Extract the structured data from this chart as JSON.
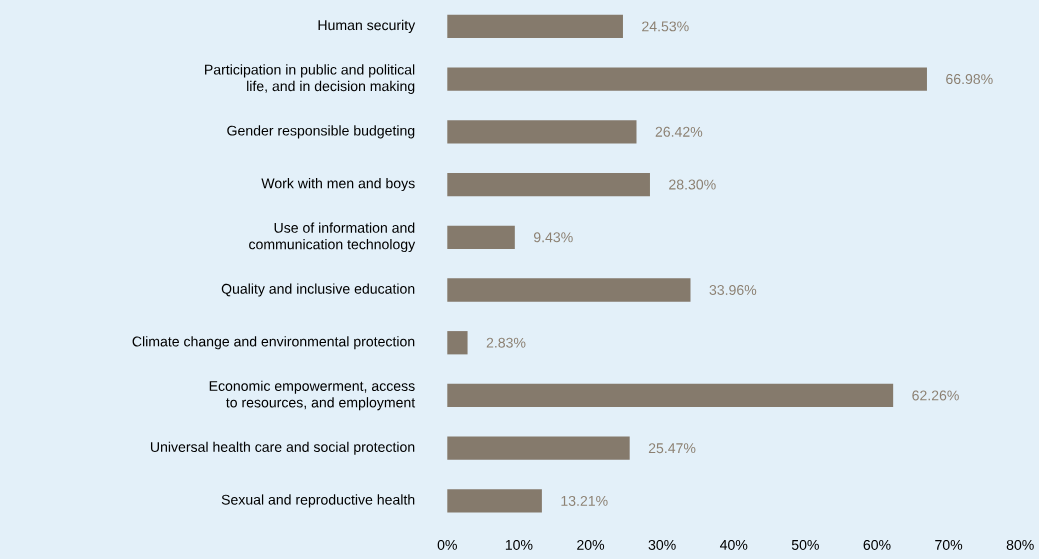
{
  "chart_data": {
    "type": "bar",
    "orientation": "horizontal",
    "categories": [
      "Human security",
      "Participation in public and political life, and in decision making",
      "Gender responsible budgeting",
      "Work with men and boys",
      "Use of information and communication technology",
      "Quality and inclusive education",
      "Climate change and environmental protection",
      "Economic empowerment, access to resources, and employment",
      "Universal health care and social protection",
      "Sexual and reproductive health"
    ],
    "values": [
      24.53,
      66.98,
      26.42,
      28.3,
      9.43,
      33.96,
      2.83,
      62.26,
      25.47,
      13.21
    ],
    "value_labels": [
      "24.53%",
      "66.98%",
      "26.42%",
      "28.30%",
      "9.43%",
      "33.96%",
      "2.83%",
      "62.26%",
      "25.47%",
      "13.21%"
    ],
    "color": "#857a6c",
    "xlim": [
      0,
      80
    ],
    "xticks": [
      {
        "value": 0,
        "label": "0%"
      },
      {
        "value": 10,
        "label": "10%"
      },
      {
        "value": 20,
        "label": "20%"
      },
      {
        "value": 30,
        "label": "30%"
      },
      {
        "value": 40,
        "label": "40%"
      },
      {
        "value": 50,
        "label": "50%"
      },
      {
        "value": 60,
        "label": "60%"
      },
      {
        "value": 70,
        "label": "70%"
      },
      {
        "value": 80,
        "label": "80%"
      }
    ],
    "grid": false
  }
}
